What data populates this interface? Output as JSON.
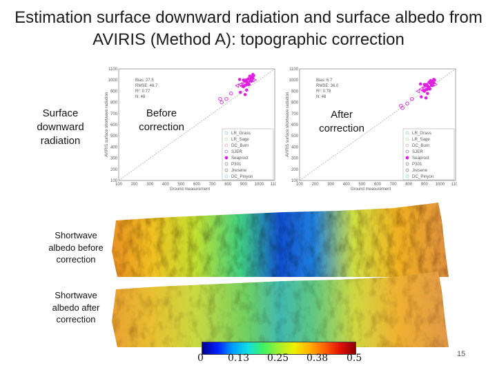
{
  "slide": {
    "title": "Estimation surface downward radiation and surface albedo from AVIRIS (Method A): topographic correction",
    "page_number": "15"
  },
  "labels": {
    "surface_radiation": [
      "Surface",
      "downward",
      "radiation"
    ],
    "before_correction": [
      "Before",
      "correction"
    ],
    "after_correction": [
      "After",
      "correction"
    ],
    "albedo_before": [
      "Shortwave",
      "albedo before",
      "correction"
    ],
    "albedo_after": [
      "Shortwave",
      "albedo after",
      "correction"
    ]
  },
  "colorbar": {
    "ticks": [
      "0",
      "0.13",
      "0.25",
      "0.38",
      "0.5"
    ]
  },
  "chart_data": [
    {
      "type": "scatter",
      "title": "Before correction",
      "xlabel": "Ground measurement",
      "ylabel": "AVIRIS surface shortwave radiation",
      "xlim": [
        100,
        1100
      ],
      "ylim": [
        100,
        1100
      ],
      "xticks": [
        "100",
        "200",
        "300",
        "400",
        "500",
        "600",
        "700",
        "800",
        "900",
        "1000",
        "1100"
      ],
      "yticks": [
        "100",
        "200",
        "300",
        "400",
        "500",
        "600",
        "700",
        "800",
        "900",
        "1000",
        "1100"
      ],
      "stats": [
        "Bias: 27.5",
        "RMSE: 46.7",
        "R²: 0.77",
        "N: 48"
      ],
      "legend": [
        "LR_Grass",
        "LR_Sage",
        "DC_Burn",
        "SJER",
        "Seaproct",
        "P301",
        "Jresene",
        "DC_Pinyon"
      ],
      "series": [
        {
          "name": "Seaproct",
          "x": [
            905,
            915,
            920,
            930,
            940,
            945,
            950,
            955,
            960,
            965,
            930,
            900,
            920,
            880,
            950,
            910,
            935,
            925,
            900,
            875,
            940,
            960,
            915
          ],
          "y": [
            990,
            1000,
            985,
            1010,
            1005,
            995,
            1020,
            1030,
            1015,
            1040,
            960,
            940,
            910,
            890,
            990,
            870,
            960,
            975,
            1000,
            1005,
            1035,
            1050,
            955
          ]
        },
        {
          "name": "P301",
          "x": [
            750,
            760,
            790,
            820
          ],
          "y": [
            830,
            800,
            830,
            880
          ]
        },
        {
          "name": "Jresene",
          "x": [
            860,
            880,
            890
          ],
          "y": [
            950,
            960,
            945
          ]
        },
        {
          "name": "DC_Pinyon",
          "x": [
            900,
            930,
            970
          ],
          "y": [
            960,
            980,
            1000
          ]
        }
      ]
    },
    {
      "type": "scatter",
      "title": "After correction",
      "xlabel": "Ground measurement",
      "ylabel": "AVIRIS surface shortwave radiation",
      "xlim": [
        100,
        1100
      ],
      "ylim": [
        100,
        1100
      ],
      "xticks": [
        "100",
        "200",
        "300",
        "400",
        "500",
        "600",
        "700",
        "800",
        "900",
        "1000",
        "1100"
      ],
      "yticks": [
        "100",
        "200",
        "300",
        "400",
        "500",
        "600",
        "700",
        "800",
        "900",
        "1000",
        "1100"
      ],
      "stats": [
        "Bias: 6.7",
        "RMSE: 36.0",
        "R²: 0.78",
        "N: 48"
      ],
      "legend": [
        "LR_Grass",
        "LR_Sage",
        "DC_Burn",
        "SJER",
        "Seaproct",
        "P301",
        "Jresene",
        "DC_Pinyon"
      ],
      "series": [
        {
          "name": "Seaproct",
          "x": [
            905,
            915,
            920,
            930,
            940,
            945,
            950,
            955,
            960,
            965,
            930,
            900,
            920,
            880,
            950,
            910,
            935,
            925,
            900,
            875,
            940,
            960,
            915
          ],
          "y": [
            950,
            960,
            945,
            980,
            970,
            955,
            985,
            990,
            975,
            1000,
            920,
            900,
            880,
            850,
            950,
            840,
            920,
            935,
            960,
            965,
            995,
            1005,
            915
          ]
        },
        {
          "name": "P301",
          "x": [
            750,
            760,
            790,
            820
          ],
          "y": [
            770,
            750,
            790,
            830
          ]
        },
        {
          "name": "Jresene",
          "x": [
            860,
            880,
            890
          ],
          "y": [
            900,
            920,
            905
          ]
        },
        {
          "name": "DC_Pinyon",
          "x": [
            900,
            930,
            970
          ],
          "y": [
            925,
            940,
            960
          ]
        }
      ]
    }
  ]
}
